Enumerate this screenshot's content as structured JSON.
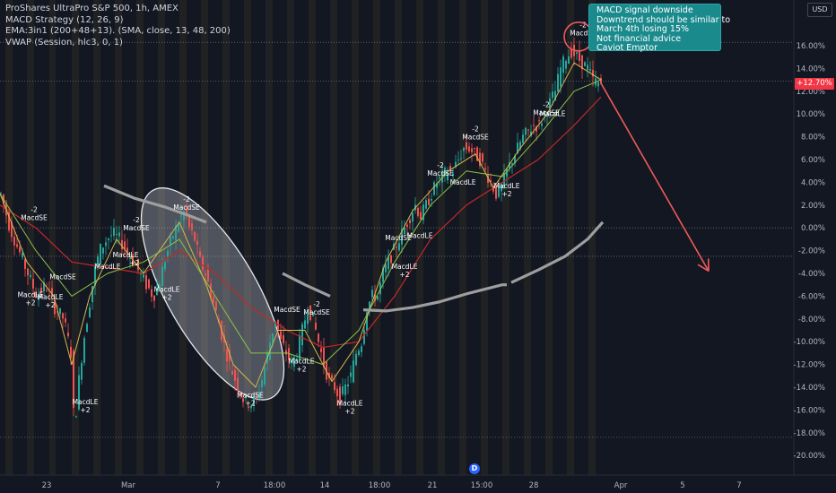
{
  "legend": {
    "title": "ProShares UltraPro S&P 500, 1h, AMEX",
    "indicator1": "MACD Strategy (12, 26, 9)",
    "indicator2": "EMA:3in1 (200+48+13). (SMA, close, 13, 48, 200)",
    "indicator3": "VWAP (Session, hlc3, 0, 1)"
  },
  "note": {
    "lines": [
      "MACD signal downside",
      "Downtrend should be similar to",
      "March 4th losing 15%",
      "Not financial advice",
      "Caviot Emptor"
    ]
  },
  "currency": "USD",
  "current_value_label": "+12.70%",
  "d_logo": "D",
  "colors": {
    "background": "#131722",
    "bull": "#26a69a",
    "bear": "#ef5350",
    "ema_long": "#c62828",
    "ema_mid": "#8bc34a",
    "ema_short": "#d4b94e",
    "vwap": "#9e9e9e",
    "ellipse_fill": "#cfd2dc",
    "arrow": "#f05a5a",
    "session_band": "#2a2a22",
    "axis_text": "#b2b5be",
    "signal_text": "#ffffff"
  },
  "chart_data": {
    "type": "candlestick",
    "y_unit": "%",
    "ylim": [
      -21,
      19
    ],
    "y_ticks": [
      16,
      14,
      12,
      10,
      8,
      6,
      4,
      2,
      0,
      -2,
      -4,
      -6,
      -8,
      -10,
      -12,
      -14,
      -16,
      -18,
      -20
    ],
    "y_tick_labels": [
      "16.00%",
      "14.00%",
      "12.00%",
      "10.00%",
      "8.00%",
      "6.00%",
      "4.00%",
      "2.00%",
      "0.00%",
      "-2.00%",
      "-4.00%",
      "-6.00%",
      "-8.00%",
      "-10.00%",
      "-12.00%",
      "-14.00%",
      "-16.00%",
      "-18.00%",
      "-20.00%"
    ],
    "x_labels": [
      {
        "label": "23",
        "t": 52
      },
      {
        "label": "Mar",
        "t": 143
      },
      {
        "label": "7",
        "t": 243
      },
      {
        "label": "18:00",
        "t": 306
      },
      {
        "label": "14",
        "t": 362
      },
      {
        "label": "18:00",
        "t": 423
      },
      {
        "label": "21",
        "t": 482
      },
      {
        "label": "15:00",
        "t": 537
      },
      {
        "label": "28",
        "t": 595
      },
      {
        "label": "Apr",
        "t": 692
      },
      {
        "label": "5",
        "t": 761
      },
      {
        "label": "7",
        "t": 824
      }
    ],
    "current_value": 12.7,
    "x_range": [
      0,
      885
    ],
    "price_path": [
      [
        0,
        3
      ],
      [
        10,
        0
      ],
      [
        20,
        -2
      ],
      [
        30,
        -4
      ],
      [
        40,
        -6
      ],
      [
        50,
        -5
      ],
      [
        60,
        -7
      ],
      [
        70,
        -8
      ],
      [
        78,
        -11
      ],
      [
        82,
        -18
      ],
      [
        86,
        -14
      ],
      [
        92,
        -10
      ],
      [
        98,
        -7
      ],
      [
        104,
        -4
      ],
      [
        110,
        -2
      ],
      [
        118,
        -1
      ],
      [
        125,
        -0.5
      ],
      [
        132,
        -1
      ],
      [
        140,
        -2
      ],
      [
        148,
        -3
      ],
      [
        155,
        -4
      ],
      [
        162,
        -5
      ],
      [
        170,
        -6
      ],
      [
        176,
        -5
      ],
      [
        182,
        -3
      ],
      [
        190,
        -1
      ],
      [
        198,
        0.5
      ],
      [
        205,
        1.5
      ],
      [
        210,
        0
      ],
      [
        216,
        -1
      ],
      [
        222,
        -3
      ],
      [
        228,
        -4
      ],
      [
        235,
        -6
      ],
      [
        242,
        -8
      ],
      [
        248,
        -10
      ],
      [
        255,
        -12
      ],
      [
        262,
        -13.5
      ],
      [
        270,
        -15
      ],
      [
        278,
        -15.5
      ],
      [
        285,
        -15
      ],
      [
        292,
        -13
      ],
      [
        300,
        -10
      ],
      [
        306,
        -8
      ],
      [
        312,
        -10
      ],
      [
        318,
        -11
      ],
      [
        324,
        -12
      ],
      [
        330,
        -11
      ],
      [
        336,
        -9
      ],
      [
        342,
        -7
      ],
      [
        348,
        -8
      ],
      [
        354,
        -10
      ],
      [
        360,
        -12
      ],
      [
        366,
        -13.5
      ],
      [
        372,
        -14
      ],
      [
        378,
        -15
      ],
      [
        384,
        -14
      ],
      [
        390,
        -13
      ],
      [
        396,
        -11
      ],
      [
        402,
        -10
      ],
      [
        408,
        -7
      ],
      [
        414,
        -6
      ],
      [
        420,
        -6
      ],
      [
        426,
        -4
      ],
      [
        432,
        -3
      ],
      [
        438,
        -2
      ],
      [
        444,
        -1
      ],
      [
        450,
        0
      ],
      [
        456,
        1
      ],
      [
        462,
        2
      ],
      [
        468,
        1
      ],
      [
        474,
        2
      ],
      [
        480,
        3
      ],
      [
        486,
        4
      ],
      [
        492,
        4.5
      ],
      [
        498,
        5
      ],
      [
        504,
        5
      ],
      [
        510,
        6
      ],
      [
        516,
        7
      ],
      [
        522,
        7
      ],
      [
        528,
        6.5
      ],
      [
        534,
        6
      ],
      [
        540,
        5
      ],
      [
        546,
        4
      ],
      [
        552,
        3
      ],
      [
        558,
        3.5
      ],
      [
        564,
        5
      ],
      [
        570,
        6
      ],
      [
        576,
        7
      ],
      [
        582,
        8
      ],
      [
        588,
        8.5
      ],
      [
        594,
        9
      ],
      [
        600,
        9
      ],
      [
        606,
        10
      ],
      [
        612,
        11
      ],
      [
        618,
        12
      ],
      [
        624,
        14
      ],
      [
        630,
        15
      ],
      [
        636,
        15.5
      ],
      [
        642,
        15
      ],
      [
        648,
        14.5
      ],
      [
        654,
        14
      ],
      [
        660,
        13
      ],
      [
        666,
        12.7
      ],
      [
        670,
        12.7
      ]
    ],
    "candle_step": 3,
    "ema_long": [
      [
        0,
        2
      ],
      [
        40,
        0
      ],
      [
        80,
        -3
      ],
      [
        120,
        -3.5
      ],
      [
        160,
        -4
      ],
      [
        200,
        -2
      ],
      [
        240,
        -4
      ],
      [
        280,
        -7
      ],
      [
        320,
        -9
      ],
      [
        360,
        -10.5
      ],
      [
        400,
        -10
      ],
      [
        440,
        -6
      ],
      [
        480,
        -1
      ],
      [
        520,
        2
      ],
      [
        560,
        4
      ],
      [
        600,
        6
      ],
      [
        640,
        9
      ],
      [
        670,
        11.5
      ]
    ],
    "ema_mid": [
      [
        0,
        3
      ],
      [
        40,
        -2
      ],
      [
        80,
        -6
      ],
      [
        120,
        -4
      ],
      [
        160,
        -3
      ],
      [
        200,
        -1
      ],
      [
        240,
        -6
      ],
      [
        280,
        -11
      ],
      [
        320,
        -11
      ],
      [
        360,
        -12
      ],
      [
        400,
        -9
      ],
      [
        440,
        -3
      ],
      [
        480,
        2
      ],
      [
        520,
        5
      ],
      [
        560,
        4.5
      ],
      [
        600,
        8
      ],
      [
        640,
        12
      ],
      [
        670,
        13
      ]
    ],
    "ema_short": [
      [
        0,
        3
      ],
      [
        30,
        -3
      ],
      [
        60,
        -6
      ],
      [
        80,
        -12
      ],
      [
        100,
        -6
      ],
      [
        130,
        -1
      ],
      [
        160,
        -4
      ],
      [
        200,
        0.5
      ],
      [
        230,
        -5
      ],
      [
        260,
        -12
      ],
      [
        285,
        -14
      ],
      [
        310,
        -9
      ],
      [
        340,
        -9
      ],
      [
        370,
        -13.5
      ],
      [
        400,
        -10
      ],
      [
        430,
        -3
      ],
      [
        460,
        1.5
      ],
      [
        500,
        5
      ],
      [
        530,
        6.5
      ],
      [
        550,
        3.5
      ],
      [
        580,
        7
      ],
      [
        610,
        10
      ],
      [
        640,
        14.5
      ],
      [
        670,
        13
      ]
    ],
    "vwap": [
      [
        [
          116,
          3.7
        ],
        [
          150,
          2.6
        ],
        [
          185,
          1.8
        ],
        [
          210,
          1.1
        ],
        [
          230,
          0.5
        ]
      ],
      [
        [
          315,
          -4
        ],
        [
          340,
          -5
        ],
        [
          368,
          -6
        ]
      ],
      [
        [
          405,
          -7.2
        ],
        [
          430,
          -7.3
        ],
        [
          460,
          -7
        ],
        [
          490,
          -6.5
        ],
        [
          520,
          -5.8
        ],
        [
          560,
          -5
        ],
        [
          565,
          -5
        ]
      ],
      [
        [
          570,
          -4.8
        ],
        [
          600,
          -3.7
        ],
        [
          630,
          -2.5
        ],
        [
          655,
          -1
        ],
        [
          672,
          0.5
        ]
      ]
    ],
    "ellipse": {
      "cx": 237,
      "cy": -5.8,
      "rx_t": 50,
      "ry": 10.5,
      "rotation_deg": -30
    },
    "session_bands": [
      [
        6,
        14
      ],
      [
        30,
        38
      ],
      [
        55,
        62
      ],
      [
        80,
        88
      ],
      [
        104,
        112
      ],
      [
        128,
        136
      ],
      [
        152,
        160
      ],
      [
        176,
        184
      ],
      [
        200,
        208
      ],
      [
        224,
        232
      ],
      [
        248,
        256
      ],
      [
        272,
        280
      ],
      [
        296,
        304
      ],
      [
        320,
        328
      ],
      [
        344,
        352
      ],
      [
        368,
        376
      ],
      [
        392,
        400
      ],
      [
        416,
        424
      ],
      [
        440,
        448
      ],
      [
        464,
        472
      ],
      [
        488,
        496
      ],
      [
        512,
        520
      ],
      [
        536,
        544
      ],
      [
        560,
        568
      ],
      [
        584,
        592
      ],
      [
        608,
        616
      ],
      [
        632,
        640
      ],
      [
        656,
        664
      ]
    ],
    "trend_arrow": {
      "from": [
        670,
        12.7
      ],
      "to": [
        790,
        -3.8
      ]
    },
    "highlight_circle": {
      "t": 645,
      "v": 16.8,
      "r_px": 16
    },
    "dotted_levels": [
      16.3,
      12.9,
      0,
      -2.5,
      -18.4
    ],
    "signals": [
      {
        "t": 38,
        "v": 1.4,
        "lines": [
          "-2",
          "MacdSE"
        ]
      },
      {
        "t": 70,
        "v": -4.5,
        "lines": [
          "MacdSE"
        ]
      },
      {
        "t": 34,
        "v": -6.1,
        "lines": [
          "MacdLE",
          "+2"
        ]
      },
      {
        "t": 56,
        "v": -6.3,
        "lines": [
          "MacdLE",
          "+2"
        ]
      },
      {
        "t": 152,
        "v": 0.5,
        "lines": [
          "-2",
          "MacdSE"
        ]
      },
      {
        "t": 140,
        "v": -2.6,
        "lines": [
          "MacdLE"
        ]
      },
      {
        "t": 120,
        "v": -3.6,
        "lines": [
          "MacdLE"
        ]
      },
      {
        "t": 150,
        "v": -3.3,
        "lines": [
          "+2"
        ]
      },
      {
        "t": 186,
        "v": -5.6,
        "lines": [
          "MacdLE",
          "+2"
        ]
      },
      {
        "t": 208,
        "v": 2.3,
        "lines": [
          "-2",
          "MacdSE"
        ]
      },
      {
        "t": 320,
        "v": -7.4,
        "lines": [
          "MacdSE"
        ]
      },
      {
        "t": 353,
        "v": -6.9,
        "lines": [
          "-2",
          "MacdSE"
        ]
      },
      {
        "t": 279,
        "v": -14.9,
        "lines": [
          "MacdSE",
          "+2"
        ]
      },
      {
        "t": 336,
        "v": -11.9,
        "lines": [
          "MacdLE",
          "+2"
        ]
      },
      {
        "t": 95,
        "v": -15.5,
        "lines": [
          "MacdLE",
          "+2"
        ]
      },
      {
        "t": 390,
        "v": -15.6,
        "lines": [
          "MacdLE",
          "+2"
        ]
      },
      {
        "t": 444,
        "v": -1.1,
        "lines": [
          "MacdSE"
        ]
      },
      {
        "t": 468,
        "v": -0.9,
        "lines": [
          "MacdLE"
        ]
      },
      {
        "t": 451,
        "v": -3.6,
        "lines": [
          "MacdLE",
          "+2"
        ]
      },
      {
        "t": 491,
        "v": 5.3,
        "lines": [
          "-2",
          "MacdSE"
        ]
      },
      {
        "t": 516,
        "v": 3.8,
        "lines": [
          "MacdLE"
        ]
      },
      {
        "t": 530,
        "v": 8.5,
        "lines": [
          "-2",
          "MacdSE"
        ]
      },
      {
        "t": 565,
        "v": 3.5,
        "lines": [
          "MacdLE",
          "+2"
        ]
      },
      {
        "t": 609,
        "v": 10.6,
        "lines": [
          "-2",
          "MacdSE"
        ]
      },
      {
        "t": 616,
        "v": 9.8,
        "lines": [
          "MacdLE"
        ]
      },
      {
        "t": 650,
        "v": 17.6,
        "lines": [
          "-2",
          "MacdSE"
        ]
      }
    ]
  }
}
